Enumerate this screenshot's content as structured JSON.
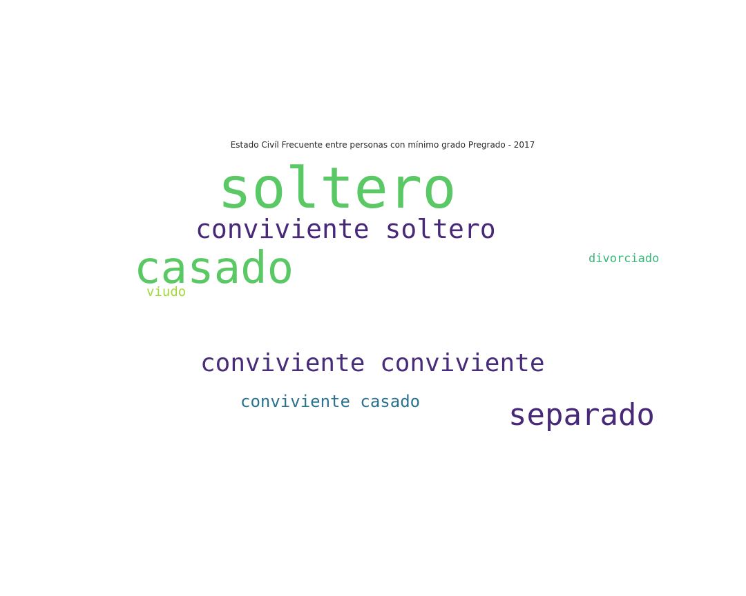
{
  "title": "Estado Civíl Frecuente entre personas con mínimo grado Pregrado - 2017",
  "words": [
    {
      "text": "soltero",
      "color": "#5ac864"
    },
    {
      "text": "conviviente soltero",
      "color": "#482878"
    },
    {
      "text": "casado",
      "color": "#5ac864"
    },
    {
      "text": "viudo",
      "color": "#a0da39"
    },
    {
      "text": "divorciado",
      "color": "#35b779"
    },
    {
      "text": "conviviente conviviente",
      "color": "#472c7a"
    },
    {
      "text": "conviviente casado",
      "color": "#2c728e"
    },
    {
      "text": "separado",
      "color": "#482878"
    }
  ]
}
